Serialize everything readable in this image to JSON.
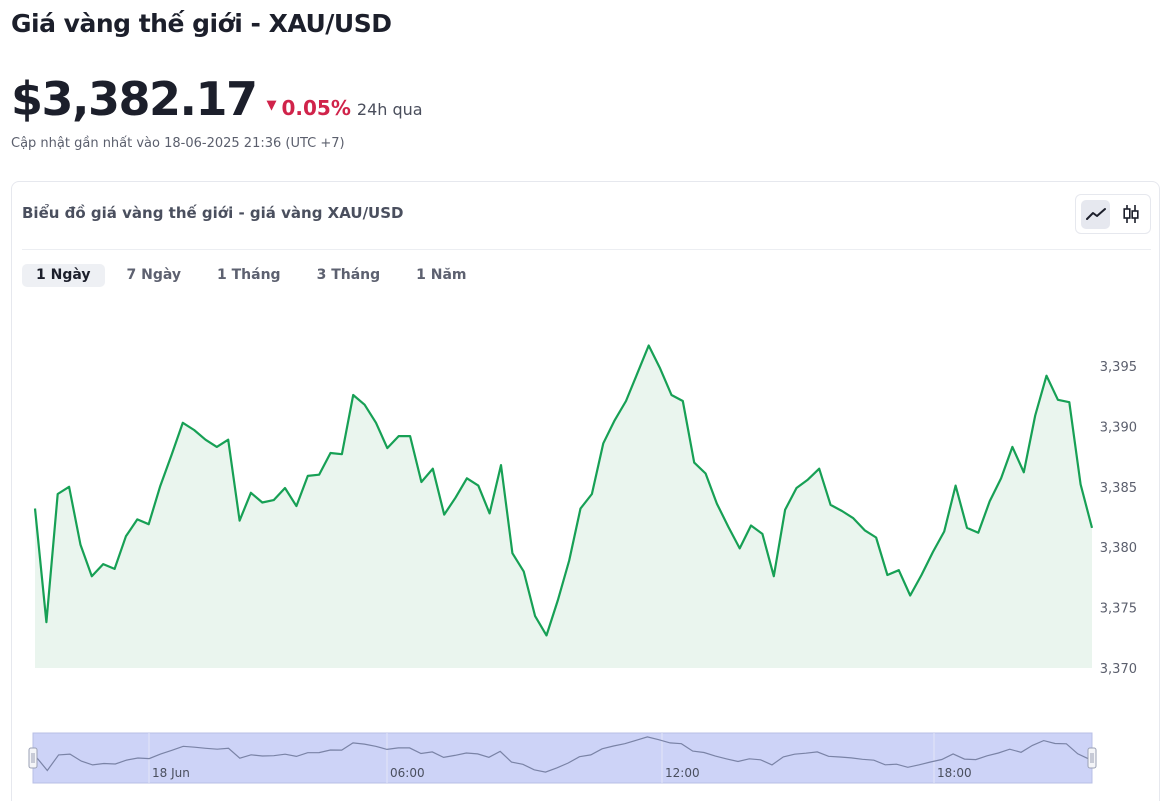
{
  "page": {
    "title": "Giá vàng thế giới - XAU/USD",
    "price": "$3,382.17",
    "change_arrow": "▼",
    "change_pct": "0.05%",
    "change_period": "24h qua",
    "updated": "Cập nhật gần nhất vào 18-06-2025 21:36 (UTC +7)"
  },
  "card": {
    "title": "Biểu đồ giá vàng thế giới - giá vàng XAU/USD",
    "chart_types": [
      "line-chart-icon",
      "candlestick-icon"
    ]
  },
  "tabs": [
    {
      "label": "1 Ngày",
      "active": true
    },
    {
      "label": "7 Ngày",
      "active": false
    },
    {
      "label": "1 Tháng",
      "active": false
    },
    {
      "label": "3 Tháng",
      "active": false
    },
    {
      "label": "1 Năm",
      "active": false
    }
  ],
  "colors": {
    "line": "#17a055",
    "area": "#eaf5ee",
    "down": "#d0234a",
    "navigator_fill": "#cdd3f7",
    "navigator_line": "#7a83a6"
  },
  "chart_data": {
    "type": "area",
    "title": "",
    "xlabel": "",
    "ylabel": "",
    "ylim": [
      3370,
      3397
    ],
    "y_ticks": [
      "3,395",
      "3,390",
      "3,385",
      "3,380",
      "3,375",
      "3,370"
    ],
    "y_tick_values": [
      3395,
      3390,
      3385,
      3380,
      3375,
      3370
    ],
    "navigator_labels": [
      "18 Jun",
      "06:00",
      "12:00",
      "18:00"
    ],
    "series": [
      {
        "values": [
          3383.2,
          3373.8,
          3384.4,
          3385.0,
          3380.2,
          3377.6,
          3378.6,
          3378.2,
          3380.9,
          3382.3,
          3381.9,
          3385.0,
          3387.6,
          3390.3,
          3389.7,
          3388.9,
          3388.3,
          3388.9,
          3382.2,
          3384.5,
          3383.7,
          3383.9,
          3384.9,
          3383.4,
          3385.9,
          3386.0,
          3387.8,
          3387.7,
          3392.6,
          3391.8,
          3390.3,
          3388.2,
          3389.2,
          3389.2,
          3385.4,
          3386.5,
          3382.7,
          3384.1,
          3385.7,
          3385.1,
          3382.8,
          3386.8,
          3379.5,
          3378.0,
          3374.3,
          3372.7,
          3375.6,
          3378.9,
          3383.2,
          3384.4,
          3388.6,
          3390.5,
          3392.1,
          3394.4,
          3396.7,
          3394.8,
          3392.6,
          3392.1,
          3387.0,
          3386.1,
          3383.6,
          3381.7,
          3379.9,
          3381.8,
          3381.1,
          3377.6,
          3383.1,
          3384.9,
          3385.6,
          3386.5,
          3383.5,
          3383.0,
          3382.4,
          3381.4,
          3380.8,
          3377.7,
          3378.1,
          3376.0,
          3377.7,
          3379.6,
          3381.3,
          3385.1,
          3381.6,
          3381.2,
          3383.8,
          3385.7,
          3388.3,
          3386.2,
          3390.9,
          3394.2,
          3392.2,
          3392.0,
          3385.2,
          3381.6
        ]
      }
    ]
  }
}
